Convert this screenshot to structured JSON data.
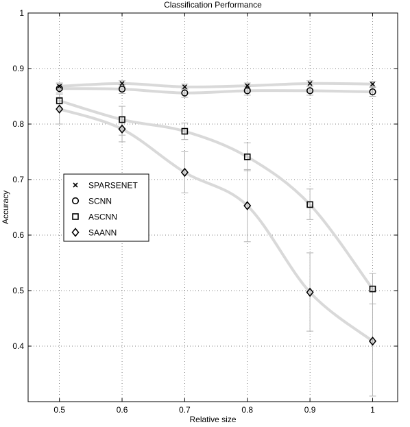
{
  "chart_data": {
    "type": "line",
    "title": "Classification Performance",
    "xlabel": "Relative size",
    "ylabel": "Accuracy",
    "x": [
      0.5,
      0.6,
      0.7,
      0.8,
      0.9,
      1
    ],
    "xlim": [
      0.45,
      1.04
    ],
    "ylim": [
      0.3,
      1.0
    ],
    "xticks": [
      "0.5",
      "0.6",
      "0.7",
      "0.8",
      "0.9",
      "1"
    ],
    "yticks": [
      "0.4",
      "0.5",
      "0.6",
      "0.7",
      "0.8",
      "0.9",
      "1"
    ],
    "grid": true,
    "legend_position": "center-left",
    "series": [
      {
        "name": "SPARSENET",
        "marker": "x",
        "values": [
          0.868,
          0.873,
          0.867,
          0.869,
          0.873,
          0.872
        ],
        "err_low": [
          0.862,
          0.868,
          0.862,
          0.864,
          0.868,
          0.867
        ],
        "err_high": [
          0.874,
          0.878,
          0.872,
          0.874,
          0.878,
          0.877
        ]
      },
      {
        "name": "SCNN",
        "marker": "circle",
        "values": [
          0.864,
          0.863,
          0.856,
          0.86,
          0.86,
          0.858
        ],
        "err_low": [
          0.856,
          0.855,
          0.848,
          0.852,
          0.852,
          0.85
        ],
        "err_high": [
          0.872,
          0.871,
          0.864,
          0.868,
          0.868,
          0.866
        ]
      },
      {
        "name": "ASCNN",
        "marker": "square",
        "values": [
          0.842,
          0.808,
          0.787,
          0.741,
          0.655,
          0.503
        ],
        "err_low": [
          0.836,
          0.78,
          0.772,
          0.716,
          0.628,
          0.476
        ],
        "err_high": [
          0.848,
          0.832,
          0.802,
          0.766,
          0.683,
          0.531
        ]
      },
      {
        "name": "SAANN",
        "marker": "diamond",
        "values": [
          0.827,
          0.791,
          0.713,
          0.653,
          0.497,
          0.409
        ],
        "err_low": [
          0.8,
          0.768,
          0.676,
          0.588,
          0.427,
          0.31
        ],
        "err_high": [
          0.854,
          0.814,
          0.75,
          0.718,
          0.568,
          0.508
        ]
      }
    ]
  }
}
